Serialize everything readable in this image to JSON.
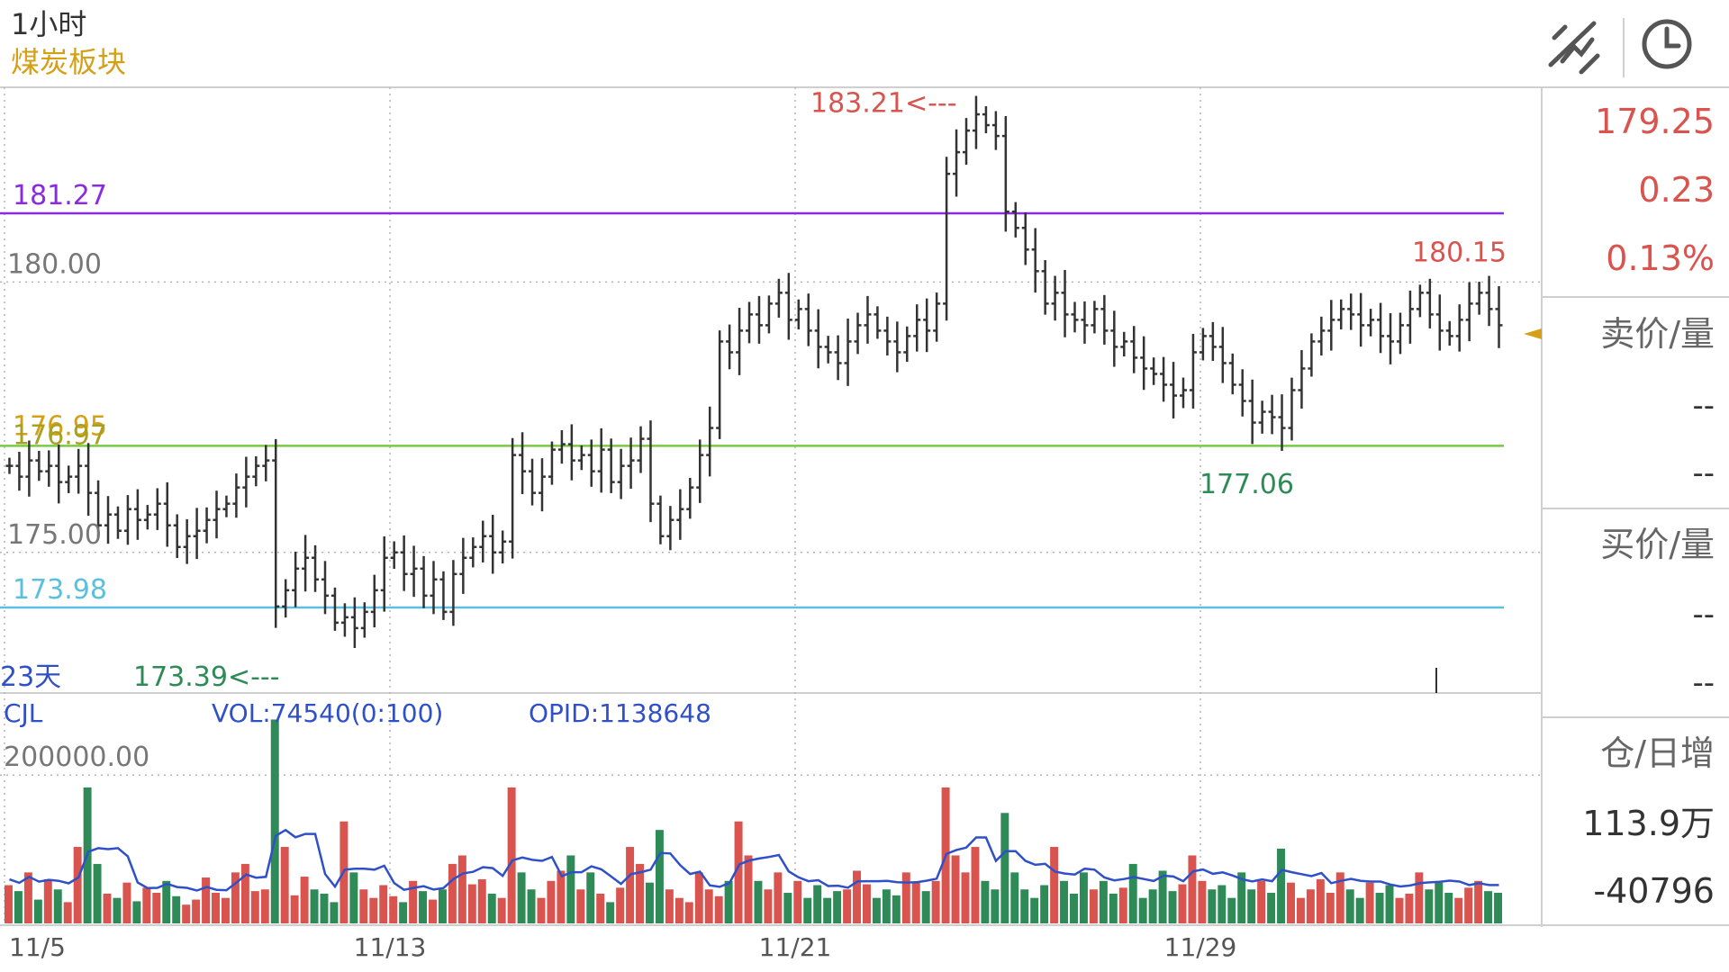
{
  "header": {
    "period": "1小时",
    "instrument": "煤炭板块",
    "draw_tool_icon": "draw-lines-icon",
    "clock_icon": "clock-icon"
  },
  "colors": {
    "up": "#d9534f",
    "down": "#2e8b57",
    "bar_black": "#333333",
    "purple_line": "#8a2be2",
    "green_line": "#7ac943",
    "cyan_line": "#5bc0de",
    "accent_gold": "#d4a017",
    "vol_line": "#3050c8"
  },
  "side_panel": {
    "last_price": "179.25",
    "change": "0.23",
    "change_pct": "0.13%",
    "ask_label": "卖价/量",
    "ask_price": "--",
    "ask_vol": "--",
    "bid_label": "买价/量",
    "bid_price": "--",
    "bid_vol": "--",
    "oi_label": "仓/日增",
    "oi_value": "113.9万",
    "oi_change": "-40796"
  },
  "chart_data": {
    "type": "ohlc",
    "title": "1小时",
    "ylim": [
      172.4,
      183.6
    ],
    "x_ticks": [
      "11/5",
      "11/13",
      "11/21",
      "11/29"
    ],
    "y_ticks": [
      "180.00",
      "175.00"
    ],
    "lines": [
      {
        "label": "181.27",
        "value": 181.27,
        "color": "purple"
      },
      {
        "label": "176.97",
        "value": 176.97,
        "color": "green",
        "overlap_label": "176.95"
      },
      {
        "label": "173.98",
        "value": 173.98,
        "color": "cyan"
      }
    ],
    "annotations": {
      "high": "183.21<---",
      "low": "173.39<---",
      "recent_high": "180.15",
      "swing_low": "177.06",
      "days": "23天"
    },
    "close_path": [
      176.6,
      176.4,
      176.7,
      176.5,
      176.6,
      176.3,
      176.4,
      176.6,
      176.1,
      175.5,
      175.7,
      175.4,
      175.8,
      175.6,
      175.7,
      175.9,
      175.5,
      175.1,
      175.3,
      175.4,
      175.6,
      175.8,
      175.9,
      176.2,
      176.4,
      176.6,
      176.7,
      174.0,
      174.3,
      174.7,
      174.9,
      174.5,
      174.2,
      173.7,
      173.8,
      173.6,
      173.9,
      174.3,
      174.9,
      175.0,
      174.6,
      174.7,
      174.2,
      174.5,
      173.9,
      174.6,
      174.9,
      175.1,
      175.3,
      175.0,
      175.2,
      176.8,
      176.5,
      176.1,
      176.4,
      176.9,
      177.0,
      176.7,
      176.8,
      176.5,
      176.9,
      176.3,
      176.6,
      176.7,
      177.1,
      175.9,
      175.3,
      175.6,
      175.8,
      176.2,
      176.8,
      177.3,
      178.9,
      178.7,
      179.1,
      179.4,
      179.2,
      179.6,
      179.8,
      179.3,
      179.5,
      179.1,
      178.8,
      178.7,
      178.5,
      178.9,
      179.2,
      179.4,
      179.1,
      178.9,
      178.7,
      179.0,
      179.3,
      179.1,
      179.6,
      182.0,
      182.4,
      182.8,
      183.1,
      182.9,
      182.7,
      181.3,
      181.0,
      180.6,
      180.2,
      179.6,
      179.8,
      179.4,
      179.3,
      179.2,
      179.5,
      179.1,
      178.8,
      178.9,
      178.6,
      178.4,
      178.3,
      178.1,
      177.9,
      178.0,
      178.7,
      179.0,
      178.8,
      178.5,
      178.1,
      177.8,
      177.4,
      177.6,
      177.5,
      177.3,
      178.0,
      178.4,
      178.9,
      179.1,
      179.3,
      179.5,
      179.4,
      179.2,
      179.3,
      179.0,
      178.9,
      179.2,
      179.5,
      179.8,
      179.4,
      179.1,
      179.0,
      179.3,
      179.6,
      179.8,
      179.5,
      179.2
    ],
    "volume_series": "CJL",
    "volume_label": "VOL:74540(0:100)",
    "opid_label": "OPID:1138648",
    "volume_tick": "200000.00",
    "volume": [
      45000,
      38000,
      60000,
      28000,
      52000,
      40000,
      25000,
      90000,
      160000,
      70000,
      35000,
      30000,
      48000,
      26000,
      42000,
      36000,
      50000,
      32000,
      22000,
      28000,
      54000,
      36000,
      30000,
      60000,
      70000,
      38000,
      40000,
      240000,
      90000,
      33000,
      55000,
      40000,
      35000,
      25000,
      120000,
      60000,
      40000,
      30000,
      45000,
      32000,
      25000,
      50000,
      38000,
      28000,
      40000,
      70000,
      80000,
      46000,
      52000,
      35000,
      30000,
      160000,
      60000,
      40000,
      30000,
      50000,
      62000,
      80000,
      40000,
      60000,
      35000,
      25000,
      42000,
      90000,
      70000,
      48000,
      110000,
      40000,
      30000,
      25000,
      60000,
      40000,
      32000,
      50000,
      120000,
      80000,
      50000,
      40000,
      60000,
      36000,
      50000,
      30000,
      45000,
      30000,
      38000,
      40000,
      62000,
      46000,
      30000,
      40000,
      33000,
      60000,
      48000,
      38000,
      50000,
      160000,
      80000,
      60000,
      90000,
      50000,
      40000,
      130000,
      60000,
      40000,
      30000,
      45000,
      90000,
      50000,
      35000,
      60000,
      40000,
      50000,
      35000,
      42000,
      70000,
      30000,
      40000,
      62000,
      38000,
      46000,
      80000,
      50000,
      40000,
      45000,
      30000,
      60000,
      40000,
      50000,
      36000,
      88000,
      48000,
      30000,
      40000,
      52000,
      36000,
      60000,
      40000,
      30000,
      48000,
      36000,
      45000,
      30000,
      35000,
      60000,
      40000,
      48000,
      36000,
      30000,
      42000,
      50000,
      38000,
      36000
    ]
  }
}
